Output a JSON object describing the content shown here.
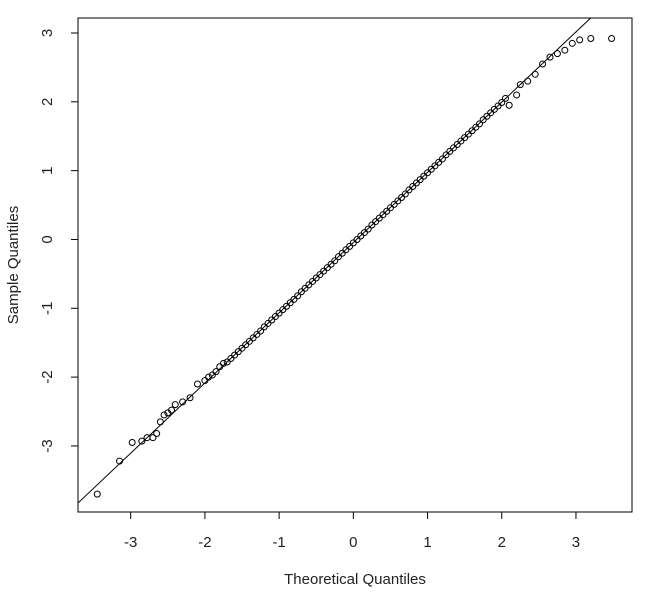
{
  "chart_data": {
    "type": "scatter",
    "xlabel": "Theoretical Quantiles",
    "ylabel": "Sample Quantiles",
    "x": [
      -3.45,
      -3.15,
      -2.98,
      -2.85,
      -2.78,
      -2.7,
      -2.65,
      -2.6,
      -2.55,
      -2.5,
      -2.45,
      -2.4,
      -2.3,
      -2.2,
      -2.1,
      -2.0,
      -1.95,
      -1.9,
      -1.85,
      -1.8,
      -1.75,
      -1.7,
      -1.65,
      -1.6,
      -1.55,
      -1.5,
      -1.45,
      -1.4,
      -1.35,
      -1.3,
      -1.25,
      -1.2,
      -1.15,
      -1.1,
      -1.05,
      -1.0,
      -0.95,
      -0.9,
      -0.85,
      -0.8,
      -0.75,
      -0.7,
      -0.65,
      -0.6,
      -0.55,
      -0.5,
      -0.45,
      -0.4,
      -0.35,
      -0.3,
      -0.25,
      -0.2,
      -0.15,
      -0.1,
      -0.05,
      0,
      0.05,
      0.1,
      0.15,
      0.2,
      0.25,
      0.3,
      0.35,
      0.4,
      0.45,
      0.5,
      0.55,
      0.6,
      0.65,
      0.7,
      0.75,
      0.8,
      0.85,
      0.9,
      0.95,
      1.0,
      1.05,
      1.1,
      1.15,
      1.2,
      1.25,
      1.3,
      1.35,
      1.4,
      1.45,
      1.5,
      1.55,
      1.6,
      1.65,
      1.7,
      1.75,
      1.8,
      1.85,
      1.9,
      1.95,
      2.0,
      2.05,
      2.1,
      2.2,
      2.25,
      2.35,
      2.45,
      2.55,
      2.65,
      2.75,
      2.85,
      2.95,
      3.05,
      3.2,
      3.48
    ],
    "y": [
      -3.7,
      -3.22,
      -2.95,
      -2.93,
      -2.88,
      -2.88,
      -2.82,
      -2.65,
      -2.55,
      -2.52,
      -2.48,
      -2.4,
      -2.36,
      -2.3,
      -2.1,
      -2.05,
      -2.0,
      -1.97,
      -1.92,
      -1.85,
      -1.8,
      -1.78,
      -1.73,
      -1.68,
      -1.63,
      -1.58,
      -1.53,
      -1.48,
      -1.43,
      -1.38,
      -1.33,
      -1.27,
      -1.22,
      -1.17,
      -1.12,
      -1.07,
      -1.02,
      -0.97,
      -0.92,
      -0.87,
      -0.82,
      -0.76,
      -0.71,
      -0.66,
      -0.61,
      -0.56,
      -0.51,
      -0.46,
      -0.41,
      -0.36,
      -0.31,
      -0.25,
      -0.2,
      -0.15,
      -0.1,
      -0.05,
      0.0,
      0.05,
      0.1,
      0.15,
      0.21,
      0.26,
      0.31,
      0.36,
      0.41,
      0.46,
      0.51,
      0.56,
      0.61,
      0.66,
      0.72,
      0.77,
      0.82,
      0.87,
      0.92,
      0.97,
      1.02,
      1.07,
      1.12,
      1.17,
      1.23,
      1.28,
      1.33,
      1.38,
      1.43,
      1.48,
      1.53,
      1.58,
      1.63,
      1.68,
      1.74,
      1.79,
      1.84,
      1.89,
      1.94,
      1.99,
      2.05,
      1.95,
      2.1,
      2.25,
      2.3,
      2.4,
      2.55,
      2.65,
      2.7,
      2.75,
      2.85,
      2.9,
      2.92,
      2.92
    ],
    "marker_color": "#000000",
    "line": {
      "x": [
        -3.71,
        3.2
      ],
      "y": [
        -3.83,
        3.22
      ],
      "color": "#000000"
    },
    "xlim": [
      -3.71,
      3.755
    ],
    "ylim": [
      -3.96,
      3.218
    ],
    "xticks": [
      -3,
      -2,
      -1,
      0,
      1,
      2,
      3
    ],
    "yticks": [
      -3,
      -2,
      -1,
      0,
      1,
      2,
      3
    ]
  }
}
